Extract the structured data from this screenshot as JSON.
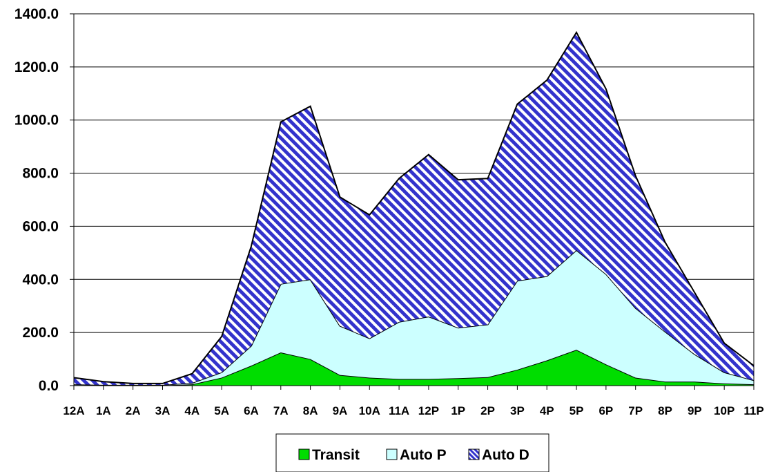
{
  "chart_data": {
    "type": "area",
    "stacked": true,
    "title": "",
    "xlabel": "",
    "ylabel": "",
    "categories": [
      "12A",
      "1A",
      "2A",
      "3A",
      "4A",
      "5A",
      "6A",
      "7A",
      "8A",
      "9A",
      "10A",
      "11A",
      "12P",
      "1P",
      "2P",
      "3P",
      "4P",
      "5P",
      "6P",
      "7P",
      "8P",
      "9P",
      "10P",
      "11P"
    ],
    "ylim": [
      0,
      1400
    ],
    "yticks": [
      "0.0",
      "200.0",
      "400.0",
      "600.0",
      "800.0",
      "1000.0",
      "1200.0",
      "1400.0"
    ],
    "grid": true,
    "legend_position": "bottom",
    "series": [
      {
        "name": "Transit",
        "fill": "#00dd00",
        "pattern": "solid",
        "values": [
          2,
          1,
          1,
          1,
          5,
          30,
          75,
          125,
          100,
          40,
          30,
          25,
          25,
          28,
          32,
          60,
          95,
          135,
          80,
          30,
          15,
          15,
          8,
          5
        ]
      },
      {
        "name": "Auto P",
        "fill": "#ccffff",
        "pattern": "solid",
        "values": [
          3,
          2,
          2,
          2,
          5,
          20,
          75,
          258,
          300,
          185,
          148,
          215,
          235,
          190,
          198,
          335,
          317,
          375,
          340,
          262,
          188,
          103,
          42,
          15
        ]
      },
      {
        "name": "Auto D",
        "fill": "#3333cc",
        "pattern": "diagonal-stripes",
        "values": [
          25,
          12,
          5,
          5,
          35,
          135,
          375,
          610,
          652,
          485,
          465,
          540,
          610,
          557,
          550,
          665,
          738,
          820,
          697,
          498,
          337,
          232,
          110,
          55
        ]
      }
    ]
  }
}
